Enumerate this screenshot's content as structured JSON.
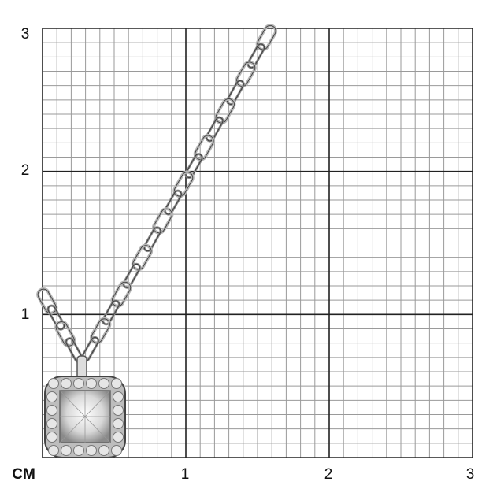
{
  "scale": {
    "unit_label": "CM",
    "x_ticks": [
      "1",
      "2",
      "3"
    ],
    "y_ticks": [
      "1",
      "2",
      "3"
    ],
    "range_cm": [
      0,
      3
    ],
    "minor_divisions_per_cm": 10
  },
  "colors": {
    "grid_minor": "#9a9a9a",
    "grid_major": "#222222",
    "metal": "#c8c8c8"
  }
}
